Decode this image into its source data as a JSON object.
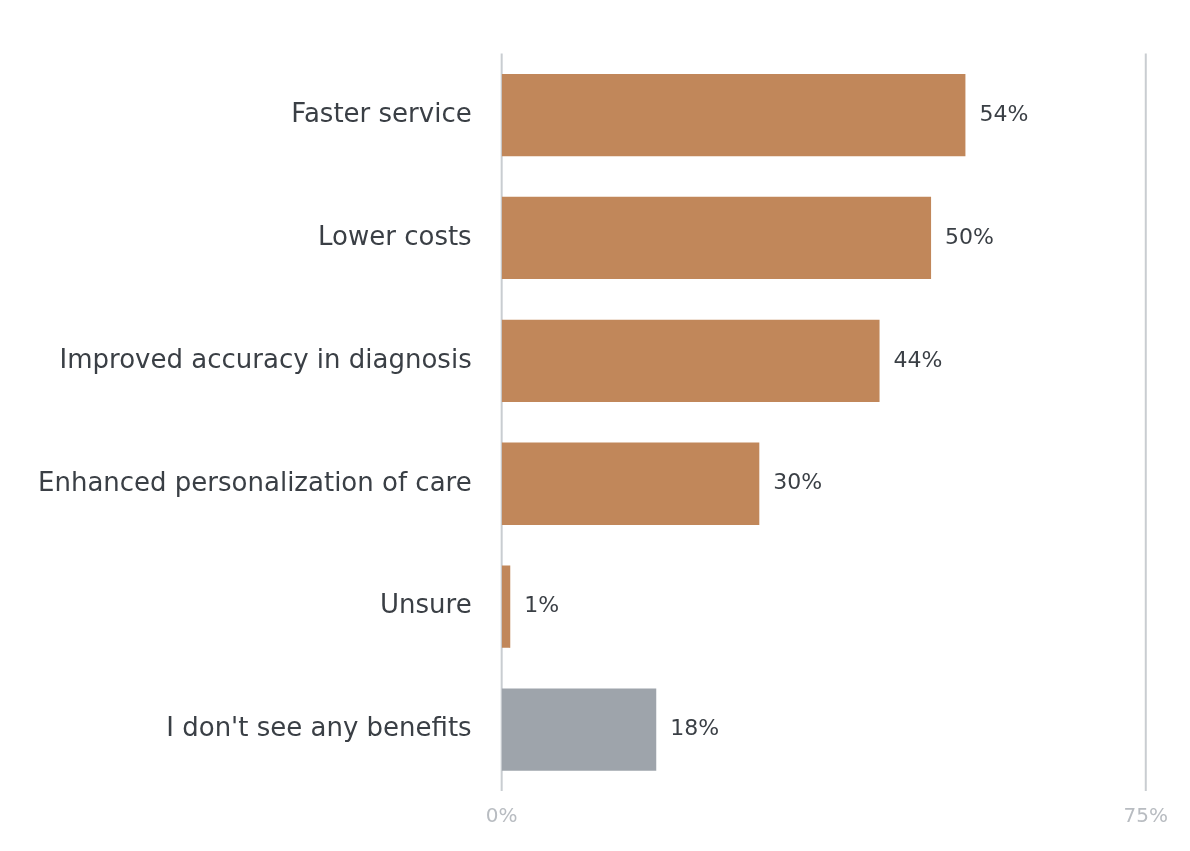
{
  "chart_data": {
    "type": "bar",
    "orientation": "horizontal",
    "categories": [
      "Faster service",
      "Lower costs",
      "Improved accuracy in diagnosis",
      "Enhanced personalization of care",
      "Unsure",
      "I don't see any benefits"
    ],
    "values": [
      54,
      50,
      44,
      30,
      1,
      18
    ],
    "colors": [
      "#c1875a",
      "#c1875a",
      "#c1875a",
      "#c1875a",
      "#c1875a",
      "#9ea4ab"
    ],
    "value_labels": [
      "54%",
      "50%",
      "44%",
      "30%",
      "1%",
      "18%"
    ],
    "xlim": [
      0,
      75
    ],
    "xticks": [
      {
        "value": 0,
        "label": "0%"
      },
      {
        "value": 75,
        "label": "75%"
      }
    ],
    "legend": false
  }
}
